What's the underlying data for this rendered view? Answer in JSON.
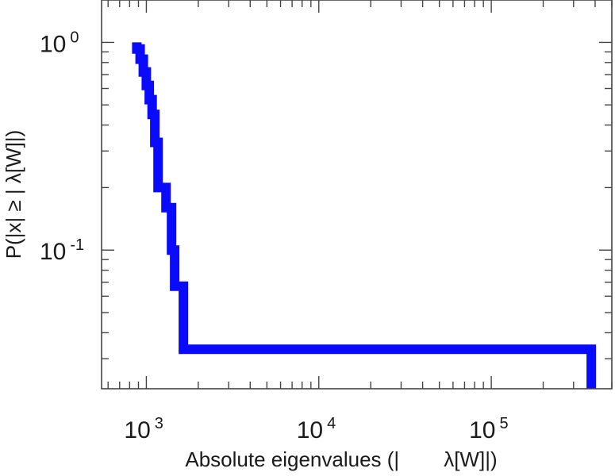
{
  "chart_data": {
    "type": "line",
    "step": true,
    "xscale": "log",
    "yscale": "log",
    "xlim": [
      550,
      500000
    ],
    "ylim": [
      0.0215,
      1.6
    ],
    "xlabel_parts": [
      "Absolute eigenvalues (|",
      "λ[W]|)"
    ],
    "ylabel": "P(|x|  ≥ | λ[W]|)",
    "x_ticks": [
      {
        "value": 1000,
        "base": "10",
        "exp": "3"
      },
      {
        "value": 10000,
        "base": "10",
        "exp": "4"
      },
      {
        "value": 100000,
        "base": "10",
        "exp": "5"
      }
    ],
    "y_ticks": [
      {
        "value": 1,
        "base": "10",
        "exp": "0"
      },
      {
        "value": 0.1,
        "base": "10",
        "exp": "-1"
      }
    ],
    "grid": false,
    "color": "#0a0aff",
    "series": [
      {
        "x": [
          880,
          880,
          920,
          920,
          960,
          960,
          1000,
          1000,
          1040,
          1040,
          1080,
          1080,
          1120,
          1120,
          1170,
          1170,
          1300,
          1300,
          1400,
          1400,
          1460,
          1460,
          1640,
          1640,
          380000,
          380000
        ],
        "y": [
          1.0,
          0.93,
          0.93,
          0.83,
          0.83,
          0.72,
          0.72,
          0.62,
          0.62,
          0.53,
          0.53,
          0.45,
          0.45,
          0.33,
          0.33,
          0.2,
          0.2,
          0.16,
          0.16,
          0.1,
          0.1,
          0.067,
          0.067,
          0.0333,
          0.0333,
          0.0215
        ]
      }
    ]
  }
}
